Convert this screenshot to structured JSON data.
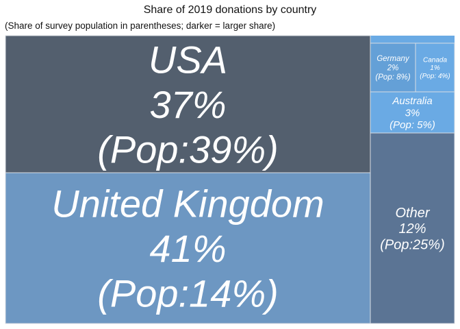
{
  "chart_data": {
    "type": "treemap",
    "title": "Share of 2019 donations by country",
    "subtitle": "(Share of survey population in parentheses; darker = larger share)",
    "tiles": [
      {
        "country": "USA",
        "share_label": "37%",
        "pop_label": "(Pop:39%)",
        "share": 37,
        "pop": 39,
        "color": "#535f6e"
      },
      {
        "country": "United Kingdom",
        "share_label": "41%",
        "pop_label": "(Pop:14%)",
        "share": 41,
        "pop": 14,
        "color": "#6d97c2"
      },
      {
        "country": "Other",
        "share_label": "12%",
        "pop_label": "(Pop:25%)",
        "share": 12,
        "pop": 25,
        "color": "#5b7494"
      },
      {
        "country": "Australia",
        "share_label": "3%",
        "pop_label": "(Pop: 5%)",
        "share": 3,
        "pop": 5,
        "color": "#6aaae4"
      },
      {
        "country": "Germany",
        "share_label": "2%",
        "pop_label": "(Pop: 8%)",
        "share": 2,
        "pop": 8,
        "color": "#64a0d7"
      },
      {
        "country": "Canada",
        "share_label": "1%",
        "pop_label": "(Pop: 4%)",
        "share": 1,
        "pop": 4,
        "color": "#6aaae4"
      }
    ]
  }
}
